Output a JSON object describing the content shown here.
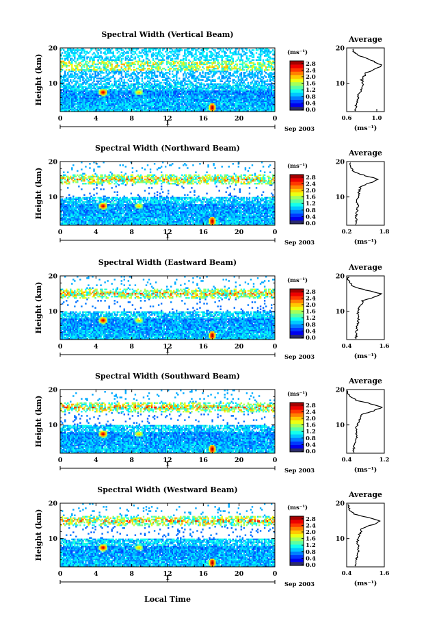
{
  "x_axis_label": "Local Time",
  "x_tick_labels": [
    "0",
    "4",
    "8",
    "12",
    "16",
    "20",
    "0"
  ],
  "date_label": "1",
  "month_label": "Sep 2003",
  "y_axis_label": "Height (km)",
  "y_tick_labels": [
    "10",
    "20"
  ],
  "colorbar_unit": "(ms⁻¹)",
  "colorbar_ticks": [
    "0.0",
    "0.4",
    "0.8",
    "1.2",
    "1.6",
    "2.0",
    "2.4",
    "2.8"
  ],
  "average_title": "Average",
  "average_unit": "(ms⁻¹)",
  "colors": {
    "ink": "#000000",
    "background": "#ffffff"
  },
  "chart_data": [
    {
      "type": "heatmap",
      "title": "Spectral Width (Vertical Beam)",
      "ylim": [
        2,
        20
      ],
      "xlim_hours": [
        0,
        24
      ],
      "clim": [
        0.0,
        2.8
      ],
      "average_profile": {
        "xlim": [
          0.6,
          1.1
        ],
        "x_tick_labels": [
          "0.6",
          "1.0"
        ],
        "heights_km": [
          3,
          5,
          7,
          9,
          11,
          13,
          14,
          15,
          16,
          17,
          18,
          19
        ],
        "values": [
          0.72,
          0.74,
          0.76,
          0.82,
          0.8,
          0.86,
          0.97,
          1.07,
          0.98,
          0.86,
          0.75,
          0.68
        ]
      }
    },
    {
      "type": "heatmap",
      "title": "Spectral Width (Northward Beam)",
      "ylim": [
        2,
        20
      ],
      "xlim_hours": [
        0,
        24
      ],
      "clim": [
        0.0,
        2.8
      ],
      "average_profile": {
        "xlim": [
          0.2,
          1.8
        ],
        "x_tick_labels": [
          "0.2",
          "1.8"
        ],
        "heights_km": [
          3,
          5,
          7,
          9,
          11,
          13,
          14,
          15,
          16,
          17,
          18,
          19
        ],
        "values": [
          0.6,
          0.62,
          0.68,
          0.65,
          0.72,
          0.78,
          1.2,
          1.55,
          1.0,
          0.55,
          0.4,
          0.35
        ]
      }
    },
    {
      "type": "heatmap",
      "title": "Spectral Width (Eastward Beam)",
      "ylim": [
        2,
        20
      ],
      "xlim_hours": [
        0,
        24
      ],
      "clim": [
        0.0,
        2.8
      ],
      "average_profile": {
        "xlim": [
          0.4,
          1.6
        ],
        "x_tick_labels": [
          "0.4",
          "1.6"
        ],
        "heights_km": [
          3,
          5,
          7,
          9,
          11,
          13,
          14,
          15,
          16,
          17,
          18,
          19
        ],
        "values": [
          0.7,
          0.72,
          0.78,
          0.74,
          0.8,
          0.92,
          1.3,
          1.5,
          1.0,
          0.62,
          0.5,
          0.45
        ]
      }
    },
    {
      "type": "heatmap",
      "title": "Spectral Width (Southward Beam)",
      "ylim": [
        2,
        20
      ],
      "xlim_hours": [
        0,
        24
      ],
      "clim": [
        0.0,
        2.8
      ],
      "average_profile": {
        "xlim": [
          0.4,
          1.2
        ],
        "x_tick_labels": [
          "0.4",
          "1.2"
        ],
        "heights_km": [
          3,
          5,
          7,
          9,
          11,
          13,
          14,
          15,
          16,
          17,
          18,
          19
        ],
        "values": [
          0.55,
          0.57,
          0.62,
          0.6,
          0.66,
          0.72,
          0.98,
          1.15,
          0.9,
          0.6,
          0.48,
          0.42
        ]
      }
    },
    {
      "type": "heatmap",
      "title": "Spectral Width (Westward Beam)",
      "ylim": [
        2,
        20
      ],
      "xlim_hours": [
        0,
        24
      ],
      "clim": [
        0.0,
        2.8
      ],
      "average_profile": {
        "xlim": [
          0.4,
          1.6
        ],
        "x_tick_labels": [
          "0.4",
          "1.6"
        ],
        "heights_km": [
          3,
          5,
          7,
          9,
          11,
          13,
          14,
          15,
          16,
          17,
          18,
          19
        ],
        "values": [
          0.7,
          0.72,
          0.78,
          0.74,
          0.8,
          0.9,
          1.25,
          1.5,
          1.05,
          0.62,
          0.5,
          0.45
        ]
      }
    }
  ]
}
